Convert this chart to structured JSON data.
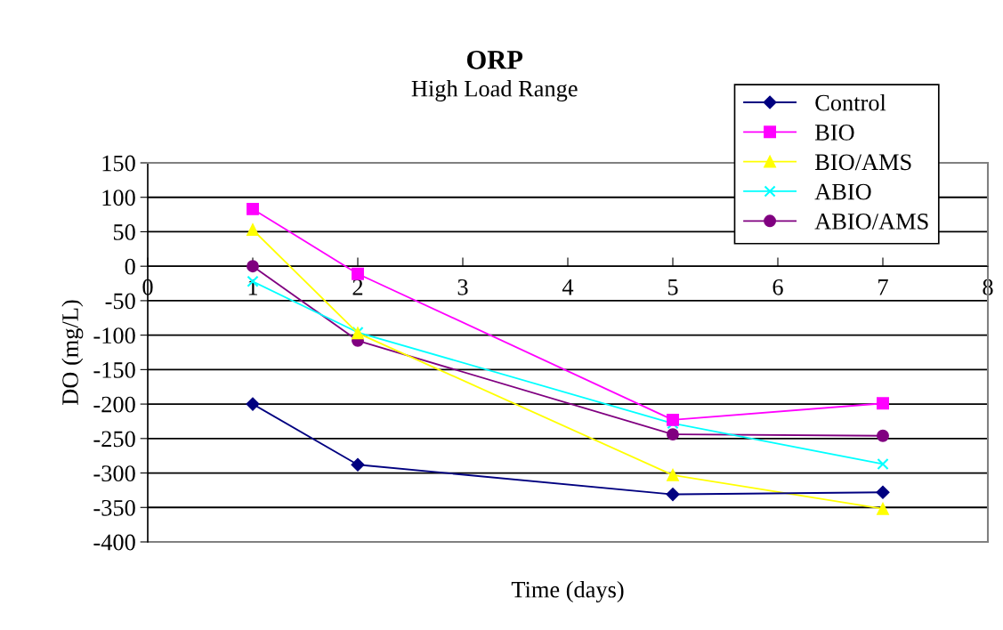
{
  "chart_data": {
    "type": "line",
    "title": "ORP",
    "subtitle": "High Load Range",
    "xlabel": "Time (days)",
    "ylabel": "DO (mg/L)",
    "x": [
      1,
      2,
      5,
      7
    ],
    "xlim": [
      0,
      8
    ],
    "xticks": [
      0,
      1,
      2,
      3,
      4,
      5,
      6,
      7,
      8
    ],
    "ylim": [
      -400,
      150
    ],
    "yticks": [
      -400,
      -350,
      -300,
      -250,
      -200,
      -150,
      -100,
      -50,
      0,
      50,
      100,
      150
    ],
    "grid": "y",
    "legend": "top right",
    "line_style": "solid",
    "series": [
      {
        "name": "Control",
        "color": "#000080",
        "marker": "diamond",
        "values": [
          -200,
          -288,
          -331,
          -328
        ]
      },
      {
        "name": "BIO",
        "color": "#ff00ff",
        "marker": "square",
        "values": [
          83,
          -11,
          -223,
          -199
        ]
      },
      {
        "name": "BIO/AMS",
        "color": "#ffff00",
        "marker": "triangle",
        "values": [
          53,
          -97,
          -303,
          -352
        ]
      },
      {
        "name": "ABIO",
        "color": "#00ffff",
        "marker": "cross",
        "values": [
          -22,
          -96,
          -228,
          -287
        ]
      },
      {
        "name": "ABIO/AMS",
        "color": "#800080",
        "marker": "circle",
        "values": [
          0,
          -108,
          -244,
          -246
        ]
      }
    ]
  }
}
